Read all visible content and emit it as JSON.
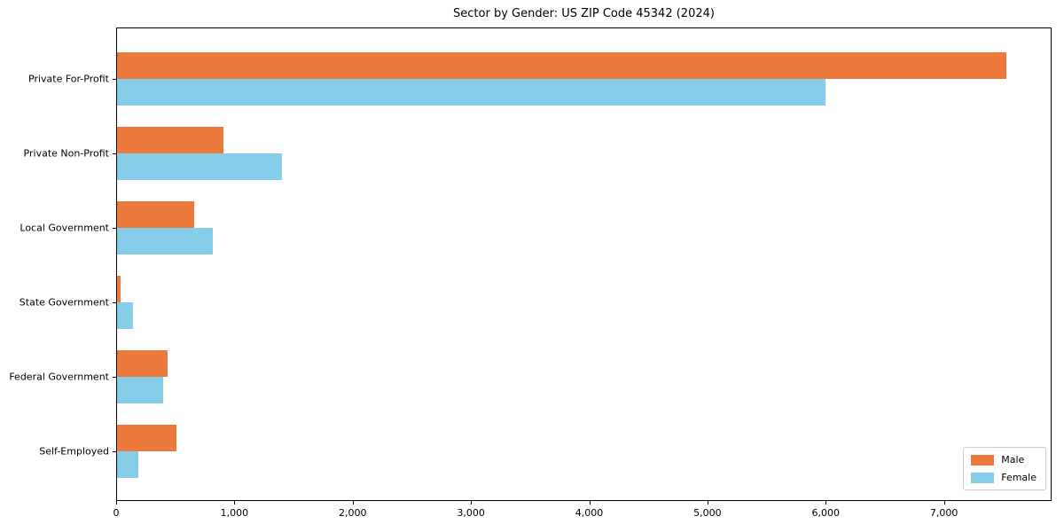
{
  "title": "Sector by Gender: US ZIP Code 45342 (2024)",
  "chart_data": {
    "type": "bar",
    "orientation": "horizontal",
    "title": "Sector by Gender: US ZIP Code 45342 (2024)",
    "categories": [
      "Private For-Profit",
      "Private Non-Profit",
      "Local Government",
      "State Government",
      "Federal Government",
      "Self-Employed"
    ],
    "series": [
      {
        "name": "Male",
        "color": "#ec7a3c",
        "values": [
          7530,
          910,
          660,
          35,
          435,
          510
        ]
      },
      {
        "name": "Female",
        "color": "#85cde8",
        "values": [
          6000,
          1400,
          815,
          140,
          400,
          185
        ]
      }
    ],
    "xlabel": "",
    "ylabel": "",
    "xlim": [
      0,
      7910
    ],
    "xticks": [
      0,
      1000,
      2000,
      3000,
      4000,
      5000,
      6000,
      7000
    ],
    "xtick_labels": [
      "0",
      "1,000",
      "2,000",
      "3,000",
      "4,000",
      "5,000",
      "6,000",
      "7,000"
    ],
    "grid": false,
    "legend": {
      "position": "lower-right",
      "entries": [
        {
          "label": "Male",
          "color": "#ec7a3c"
        },
        {
          "label": "Female",
          "color": "#85cde8"
        }
      ]
    }
  }
}
